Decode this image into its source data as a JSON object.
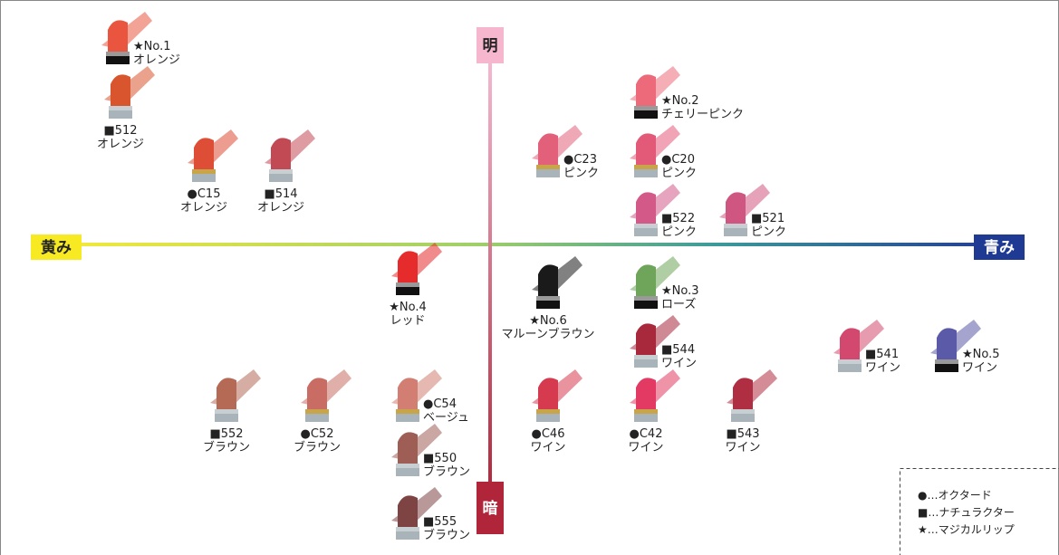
{
  "axes": {
    "top": "明",
    "bottom": "暗",
    "left": "黄み",
    "right": "青み"
  },
  "items": [
    {
      "code": "★No.1",
      "name": "オレンジ"
    },
    {
      "code": "■512",
      "name": "オレンジ"
    },
    {
      "code": "●C15",
      "name": "オレンジ"
    },
    {
      "code": "■514",
      "name": "オレンジ"
    },
    {
      "code": "★No.2",
      "name": "チェリーピンク"
    },
    {
      "code": "●C23",
      "name": "ピンク"
    },
    {
      "code": "●C20",
      "name": "ピンク"
    },
    {
      "code": "■522",
      "name": "ピンク"
    },
    {
      "code": "■521",
      "name": "ピンク"
    },
    {
      "code": "★No.4",
      "name": "レッド"
    },
    {
      "code": "★No.6",
      "name": "マルーンブラウン"
    },
    {
      "code": "★No.3",
      "name": "ローズ"
    },
    {
      "code": "■544",
      "name": "ワイン"
    },
    {
      "code": "■541",
      "name": "ワイン"
    },
    {
      "code": "★No.5",
      "name": "ワイン"
    },
    {
      "code": "■552",
      "name": "ブラウン"
    },
    {
      "code": "●C52",
      "name": "ブラウン"
    },
    {
      "code": "●C54",
      "name": "ベージュ"
    },
    {
      "code": "●C46",
      "name": "ワイン"
    },
    {
      "code": "●C42",
      "name": "ワイン"
    },
    {
      "code": "■543",
      "name": "ワイン"
    },
    {
      "code": "■550",
      "name": "ブラウン"
    },
    {
      "code": "■555",
      "name": "ブラウン"
    }
  ],
  "legend": [
    "●…オクタード",
    "■…ナチュラクター",
    "★…マジカルリップ"
  ]
}
